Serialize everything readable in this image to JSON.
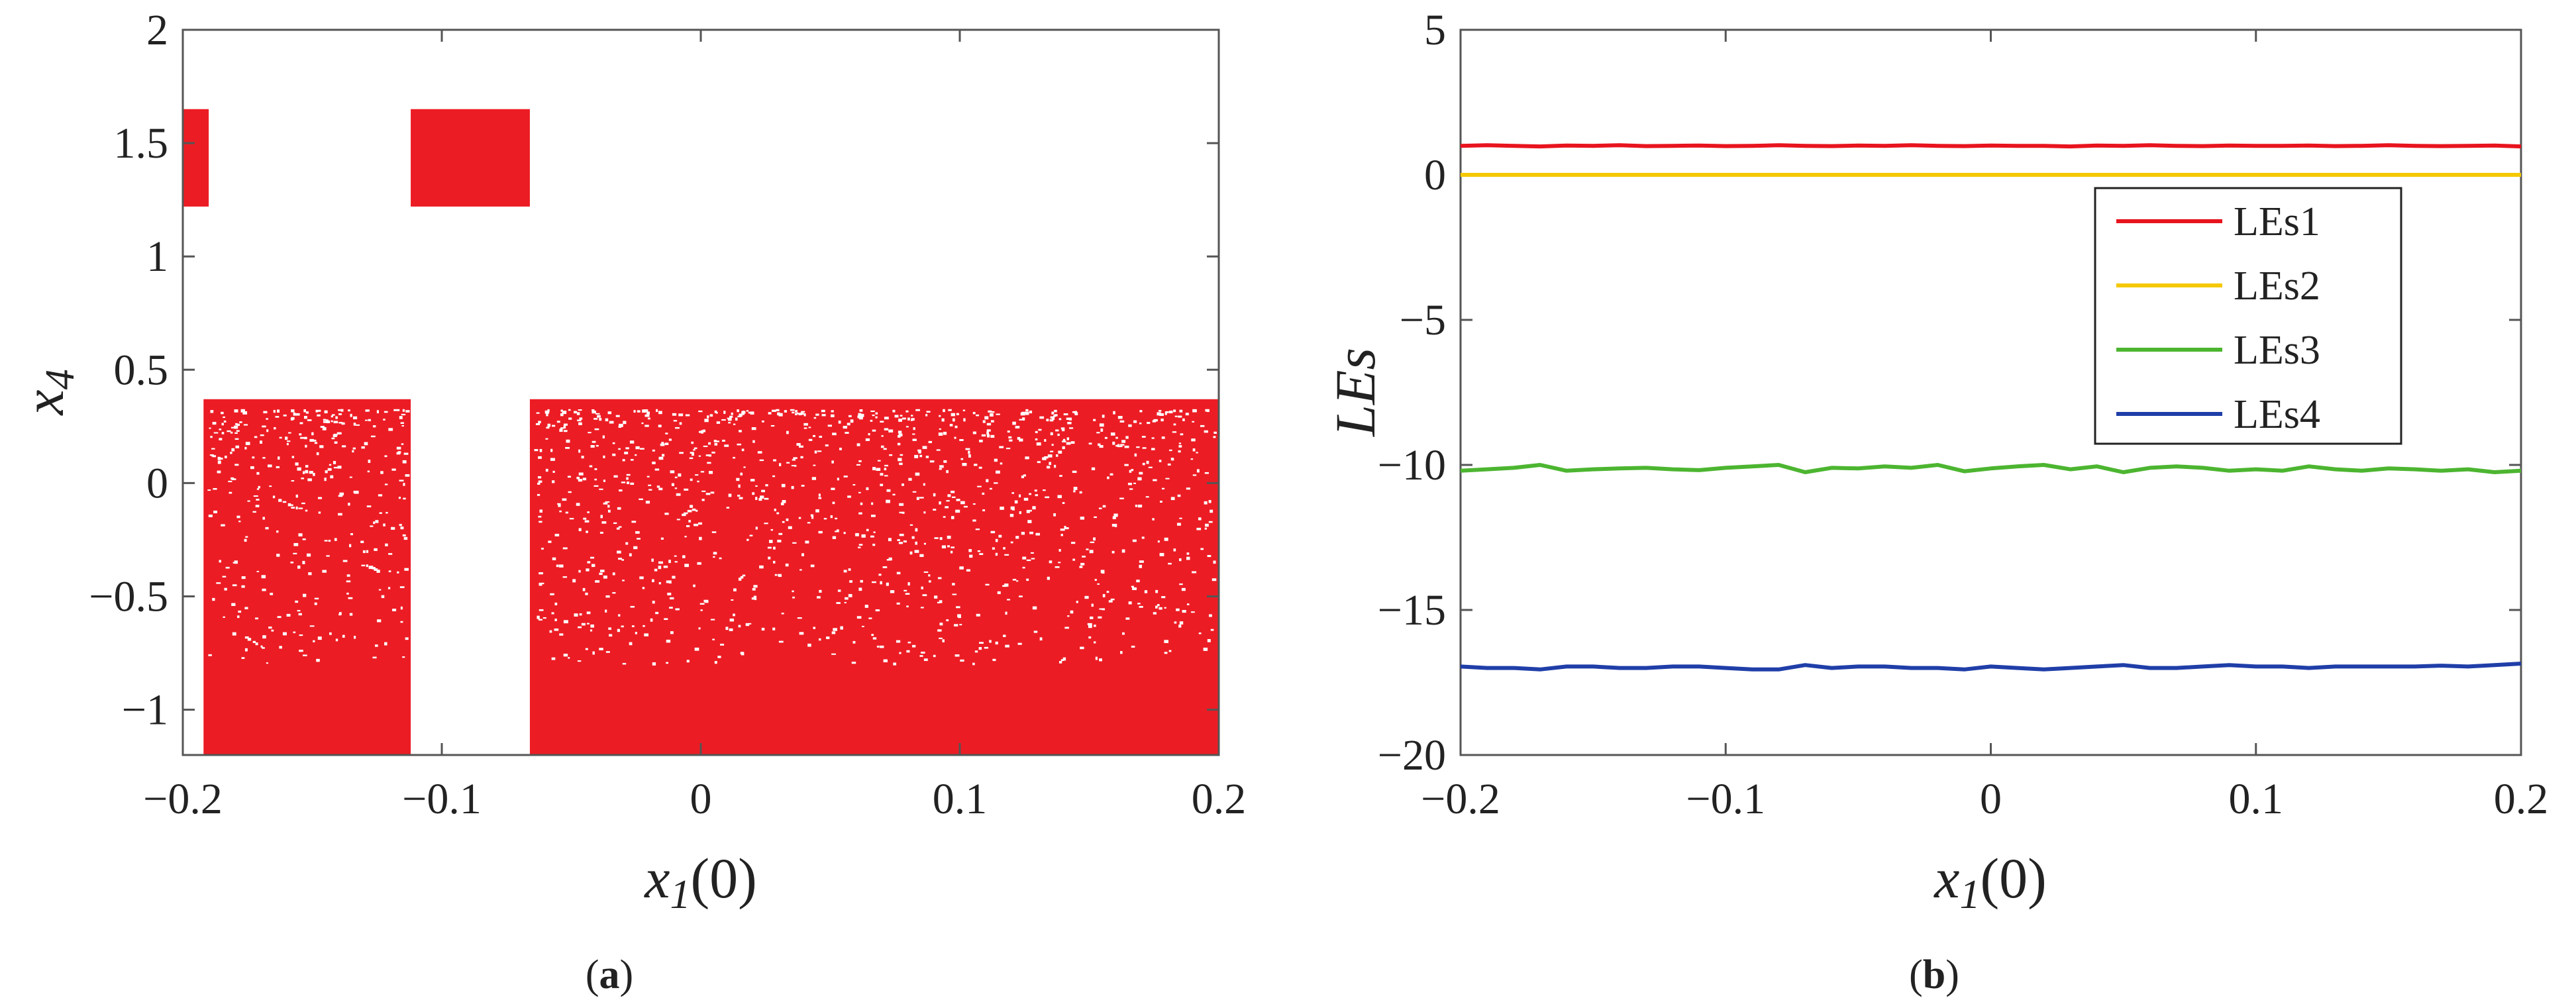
{
  "chart_data": [
    {
      "type": "scatter",
      "panel_label": "(a)",
      "panel_letter": "a",
      "xlabel": "x1(0)",
      "xlabel_parts": {
        "var": "x",
        "sub": "1",
        "arg": "(0)"
      },
      "ylabel": "x4",
      "ylabel_parts": {
        "var": "x",
        "sub": "4"
      },
      "xlim": [
        -0.2,
        0.2
      ],
      "ylim": [
        -1.2,
        2
      ],
      "xticks": [
        -0.2,
        -0.1,
        0,
        0.1,
        0.2
      ],
      "xtick_labels": [
        "−0.2",
        "−0.1",
        "0",
        "0.1",
        "0.2"
      ],
      "yticks": [
        -1,
        -0.5,
        0,
        0.5,
        1,
        1.5,
        2
      ],
      "ytick_labels": [
        "−1",
        "−0.5",
        "0",
        "0.5",
        "1",
        "1.5",
        "2"
      ],
      "grid": false,
      "color": "#ec1c24",
      "regions": [
        {
          "x": [
            -0.2,
            -0.19
          ],
          "y": [
            1.22,
            1.65
          ]
        },
        {
          "x": [
            -0.112,
            -0.066
          ],
          "y": [
            1.22,
            1.65
          ]
        },
        {
          "x": [
            -0.192,
            -0.112
          ],
          "y": [
            -1.2,
            0.37
          ]
        },
        {
          "x": [
            -0.066,
            0.2
          ],
          "y": [
            -1.2,
            0.37
          ]
        }
      ]
    },
    {
      "type": "line",
      "panel_label": "(b)",
      "panel_letter": "b",
      "xlabel": "x1(0)",
      "xlabel_parts": {
        "var": "x",
        "sub": "1",
        "arg": "(0)"
      },
      "ylabel": "LEs",
      "xlim": [
        -0.2,
        0.2
      ],
      "ylim": [
        -20,
        5
      ],
      "xticks": [
        -0.2,
        -0.1,
        0,
        0.1,
        0.2
      ],
      "xtick_labels": [
        "−0.2",
        "−0.1",
        "0",
        "0.1",
        "0.2"
      ],
      "yticks": [
        -20,
        -15,
        -10,
        -5,
        0,
        5
      ],
      "ytick_labels": [
        "−20",
        "−15",
        "−10",
        "−5",
        "0",
        "5"
      ],
      "grid": false,
      "legend_position": "right",
      "x": [
        -0.2,
        -0.19,
        -0.18,
        -0.17,
        -0.16,
        -0.15,
        -0.14,
        -0.13,
        -0.12,
        -0.11,
        -0.1,
        -0.09,
        -0.08,
        -0.07,
        -0.06,
        -0.05,
        -0.04,
        -0.03,
        -0.02,
        -0.01,
        0,
        0.01,
        0.02,
        0.03,
        0.04,
        0.05,
        0.06,
        0.07,
        0.08,
        0.09,
        0.1,
        0.11,
        0.12,
        0.13,
        0.14,
        0.15,
        0.16,
        0.17,
        0.18,
        0.19,
        0.2
      ],
      "series": [
        {
          "name": "LEs1",
          "color": "#e8141e",
          "values": [
            1.0,
            1.02,
            1.0,
            0.98,
            1.01,
            1.0,
            1.02,
            0.99,
            1.0,
            1.01,
            0.99,
            1.0,
            1.02,
            1.0,
            0.99,
            1.01,
            1.0,
            1.02,
            1.0,
            0.99,
            1.01,
            1.0,
            1.0,
            0.98,
            1.01,
            1.0,
            1.02,
            1.0,
            0.99,
            1.01,
            1.0,
            1.0,
            1.01,
            0.99,
            1.0,
            1.02,
            1.0,
            0.99,
            1.0,
            1.01,
            0.98
          ]
        },
        {
          "name": "LEs2",
          "color": "#f5c800",
          "values": [
            0,
            0,
            0,
            0,
            0,
            0,
            0,
            0,
            0,
            0,
            0,
            0,
            0,
            0,
            0,
            0,
            0,
            0,
            0,
            0,
            0,
            0,
            0,
            0,
            0,
            0,
            0,
            0,
            0,
            0,
            0,
            0,
            0,
            0,
            0,
            0,
            0,
            0,
            0,
            0,
            0
          ]
        },
        {
          "name": "LEs3",
          "color": "#4cb530",
          "values": [
            -10.2,
            -10.15,
            -10.1,
            -10.0,
            -10.2,
            -10.15,
            -10.12,
            -10.1,
            -10.15,
            -10.18,
            -10.1,
            -10.05,
            -10.0,
            -10.25,
            -10.1,
            -10.12,
            -10.05,
            -10.1,
            -10.0,
            -10.22,
            -10.12,
            -10.05,
            -10.0,
            -10.15,
            -10.05,
            -10.25,
            -10.1,
            -10.05,
            -10.1,
            -10.2,
            -10.15,
            -10.2,
            -10.05,
            -10.15,
            -10.2,
            -10.12,
            -10.15,
            -10.2,
            -10.15,
            -10.25,
            -10.2
          ]
        },
        {
          "name": "LEs4",
          "color": "#1f3ea8",
          "values": [
            -16.95,
            -17.0,
            -17.0,
            -17.05,
            -16.95,
            -16.95,
            -17.0,
            -17.0,
            -16.95,
            -16.95,
            -17.0,
            -17.05,
            -17.05,
            -16.9,
            -17.0,
            -16.95,
            -16.95,
            -17.0,
            -17.0,
            -17.05,
            -16.95,
            -17.0,
            -17.05,
            -17.0,
            -16.95,
            -16.9,
            -17.0,
            -17.0,
            -16.95,
            -16.9,
            -16.95,
            -16.95,
            -17.0,
            -16.95,
            -16.95,
            -16.95,
            -16.95,
            -16.92,
            -16.95,
            -16.9,
            -16.85
          ]
        }
      ]
    }
  ]
}
